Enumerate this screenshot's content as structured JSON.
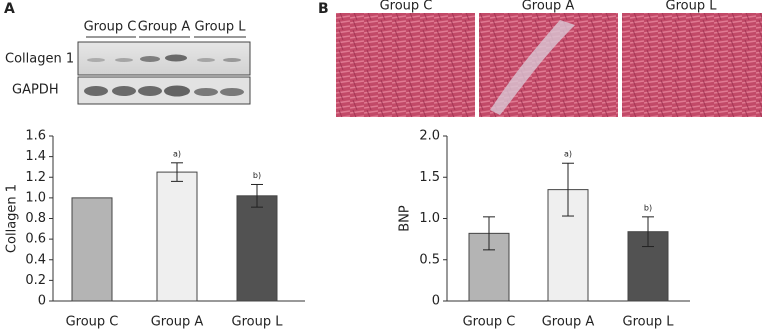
{
  "figure": {
    "panel_labels": [
      "A",
      "B"
    ],
    "blot": {
      "lanes": [
        "Group C",
        "Group A",
        "Group L"
      ],
      "rows": [
        "Collagen 1",
        "GAPDH"
      ]
    },
    "histology": {
      "labels": [
        "Group C",
        "Group A",
        "Group L"
      ]
    }
  },
  "chart_data": [
    {
      "type": "bar",
      "ylabel": "Collagen 1",
      "categories": [
        "Group C",
        "Group A",
        "Group L"
      ],
      "values": [
        1.0,
        1.25,
        1.02
      ],
      "errors": [
        null,
        0.09,
        0.11
      ],
      "annotations": [
        null,
        "a)",
        "b)"
      ],
      "colors": [
        "#b4b4b4",
        "#efefef",
        "#525252"
      ],
      "ylim": [
        0,
        1.6
      ],
      "yticks": [
        0,
        0.2,
        0.4,
        0.6,
        0.8,
        {
          "value": 1,
          "label": "1.0"
        },
        1.2,
        1.4,
        1.6
      ]
    },
    {
      "type": "bar",
      "ylabel": "BNP",
      "categories": [
        "Group C",
        "Group A",
        "Group L"
      ],
      "values": [
        0.82,
        1.35,
        0.84
      ],
      "errors": [
        0.2,
        0.32,
        0.18
      ],
      "annotations": [
        null,
        "a)",
        "b)"
      ],
      "colors": [
        "#b4b4b4",
        "#efefef",
        "#525252"
      ],
      "ylim": [
        0,
        2
      ],
      "yticks": [
        0,
        0.5,
        {
          "value": 1,
          "label": "1.0"
        },
        1.5,
        {
          "value": 2,
          "label": "2.0"
        }
      ]
    }
  ]
}
